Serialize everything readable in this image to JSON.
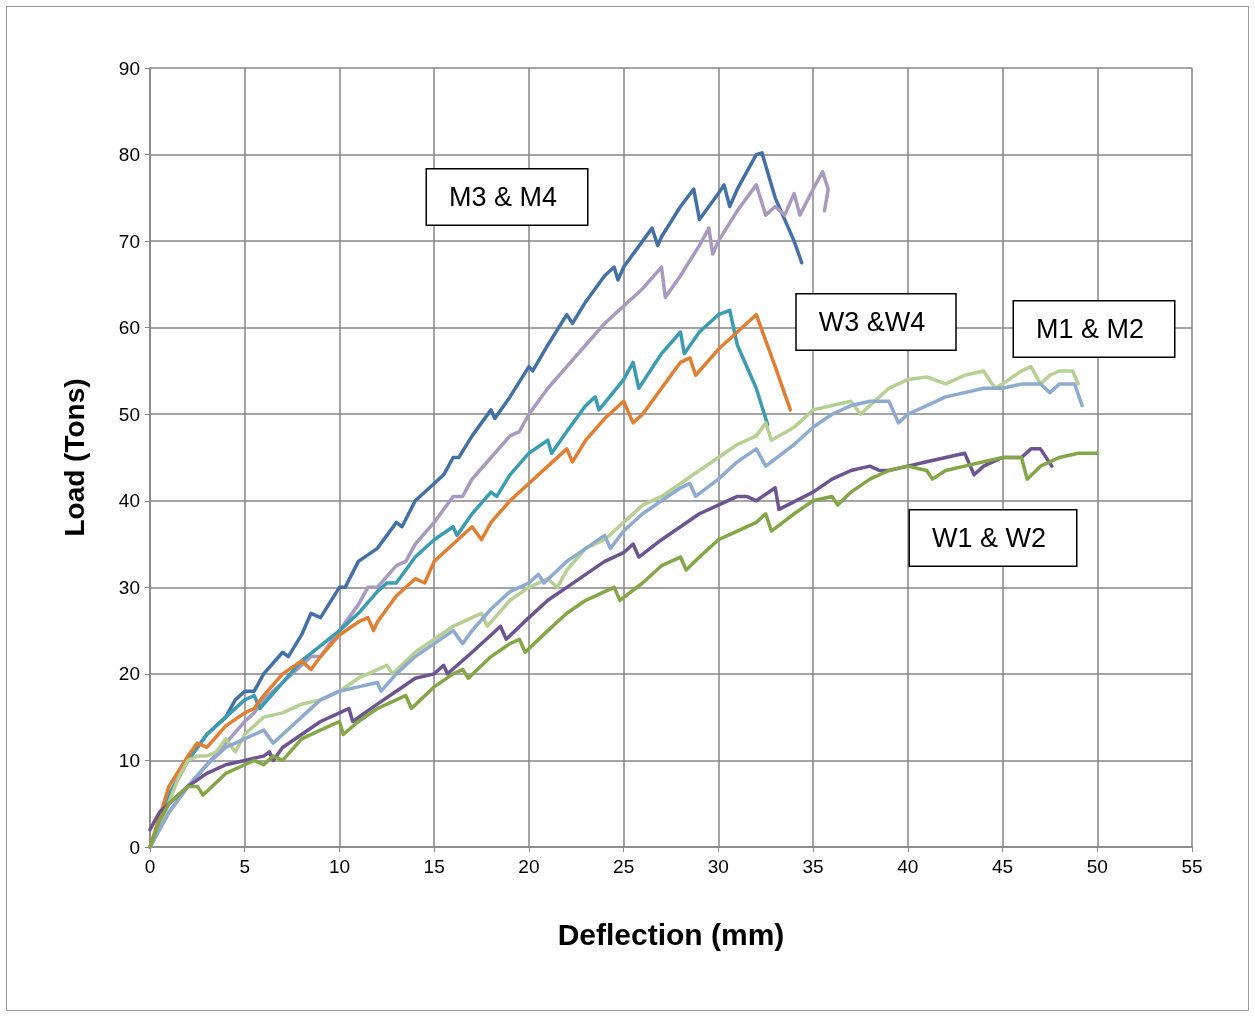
{
  "chart_data": {
    "type": "line",
    "xlabel": "Deflection (mm)",
    "ylabel": "Load (Tons)",
    "xlim": [
      0,
      55
    ],
    "xticks": [
      0,
      5,
      10,
      15,
      20,
      25,
      30,
      35,
      40,
      45,
      50,
      55
    ],
    "ylim": [
      0,
      90
    ],
    "yticks": [
      0,
      10,
      20,
      30,
      40,
      50,
      60,
      70,
      80,
      90
    ],
    "grid": true,
    "marker": "none",
    "line_style": "solid",
    "annotations": [
      "M3 & M4",
      "W3 &W4",
      "M1 & M2",
      "W1 & W2"
    ],
    "series": [
      {
        "color": "#4470a8",
        "x": [
          0,
          1,
          2,
          3,
          3.5,
          4,
          4.5,
          5,
          5.5,
          6,
          7,
          7.3,
          8,
          8.5,
          9,
          10,
          10.3,
          11,
          12,
          13,
          13.3,
          14,
          15,
          15.5,
          16,
          16.3,
          17,
          18,
          18.2,
          19,
          20,
          20.2,
          21,
          22,
          22.3,
          23,
          24,
          24.5,
          24.7,
          25,
          26,
          26.5,
          26.8,
          27,
          28,
          28.7,
          29,
          30,
          30.3,
          30.6,
          31,
          32,
          32.3,
          33,
          34,
          34.4
        ],
        "values": [
          0,
          6,
          10,
          13,
          14,
          15,
          17,
          18,
          18,
          20,
          22.5,
          22,
          24.5,
          27,
          26.5,
          30,
          30,
          33,
          34.5,
          37.5,
          37,
          40,
          42,
          43,
          45,
          45,
          47.5,
          50.5,
          49.5,
          52,
          55.5,
          55,
          58,
          61.5,
          60.5,
          63,
          66,
          67,
          65.5,
          67,
          70,
          71.5,
          69.5,
          70.5,
          74,
          76,
          72.5,
          75.5,
          76.5,
          74,
          76,
          80,
          80.2,
          75,
          70,
          67.5
        ]
      },
      {
        "color": "#a799c0",
        "x": [
          0,
          1,
          2,
          3,
          4,
          5,
          5.5,
          6,
          7,
          8,
          8.5,
          9,
          10,
          11,
          11.5,
          12,
          13,
          13.5,
          14,
          15,
          16,
          16.5,
          17,
          18,
          19,
          19.5,
          20,
          20.5,
          21,
          22,
          23,
          24,
          25,
          26,
          27,
          27.2,
          28,
          29,
          29.5,
          29.7,
          30,
          31,
          32,
          32.5,
          33,
          33.5,
          34,
          34.3,
          35,
          35.5,
          35.8,
          35.6
        ],
        "values": [
          0,
          4,
          7,
          9.5,
          12,
          14.5,
          15.5,
          17,
          19,
          21,
          22,
          22,
          25,
          28,
          30,
          30,
          32.5,
          33,
          35,
          37.5,
          40.5,
          40.5,
          42.5,
          45,
          47.5,
          48,
          50,
          51.5,
          53,
          55.5,
          58,
          60.5,
          62.5,
          64.5,
          67,
          63.5,
          66,
          69.5,
          71.5,
          68.5,
          70,
          73.5,
          76.5,
          73,
          74,
          73,
          75.5,
          73,
          76,
          78,
          76,
          73.5
        ]
      },
      {
        "color": "#3b9cb1",
        "x": [
          0,
          1,
          2,
          3,
          4,
          5,
          5.5,
          5.8,
          7,
          8,
          10,
          11,
          12,
          12.5,
          13,
          14,
          15,
          16,
          16.2,
          17,
          18,
          18.3,
          19,
          20,
          21,
          21.2,
          22,
          23,
          23.5,
          23.7,
          25,
          25.5,
          25.8,
          27,
          28,
          28.2,
          29,
          30,
          30.6,
          31,
          32,
          32.6
        ],
        "values": [
          0,
          6,
          10,
          13,
          15,
          17,
          17.5,
          16,
          19,
          21.5,
          25,
          27,
          29.5,
          30.5,
          30.5,
          33.5,
          35.5,
          37,
          36,
          38.5,
          41,
          40.5,
          43,
          45.5,
          47,
          45.5,
          48,
          51,
          52,
          50.5,
          54,
          56,
          53,
          57,
          59.5,
          57,
          59.5,
          61.5,
          62,
          58,
          53,
          48.8
        ]
      },
      {
        "color": "#e07f33",
        "x": [
          0,
          1,
          2,
          2.5,
          3,
          4,
          5,
          5.5,
          6,
          7,
          8,
          8.5,
          9,
          10,
          11,
          11.5,
          11.8,
          12,
          13,
          14,
          14.5,
          15,
          16,
          17,
          17.5,
          18,
          19,
          20,
          21,
          22,
          22.3,
          23,
          24,
          25,
          25.5,
          26,
          27,
          28,
          28.5,
          28.8,
          30,
          31,
          32,
          33,
          33.8
        ],
        "values": [
          0,
          7,
          10.5,
          12,
          11.5,
          14,
          15.5,
          16,
          17.5,
          20,
          21.5,
          20.5,
          22,
          24.5,
          26,
          26.5,
          25,
          26,
          29,
          31,
          30.5,
          33,
          35,
          37,
          35.5,
          37.5,
          40,
          42,
          44,
          46,
          44.5,
          47,
          49.5,
          51.5,
          49,
          50,
          53,
          56,
          56.5,
          54.5,
          57.5,
          59.5,
          61.5,
          55.5,
          50.5
        ]
      },
      {
        "color": "#b6cf92",
        "x": [
          0,
          0.8,
          1.5,
          2,
          2.5,
          3,
          3.5,
          4,
          4.5,
          5,
          6,
          7,
          8,
          9,
          10,
          11,
          12,
          12.5,
          12.8,
          14,
          15,
          16,
          17,
          17.5,
          17.8,
          19,
          20,
          21,
          21.5,
          22,
          23,
          24,
          25,
          26,
          27,
          28,
          29,
          30,
          31,
          32,
          32.5,
          32.8,
          34,
          35,
          36,
          37,
          37.5,
          38,
          39,
          40,
          41,
          42,
          43,
          44,
          44.6,
          45,
          46,
          46.5,
          47,
          47.5,
          48,
          48.7,
          49
        ],
        "values": [
          0,
          4,
          8,
          10,
          10.5,
          10.5,
          11,
          12.5,
          11,
          13,
          15,
          15.5,
          16.5,
          17,
          18,
          19.5,
          20.5,
          21,
          20,
          22.5,
          24,
          25.5,
          26.5,
          27,
          25.5,
          28.5,
          30,
          31,
          30,
          32,
          34.5,
          35.5,
          37.5,
          39.5,
          40.5,
          42,
          43.5,
          45,
          46.5,
          47.5,
          49,
          47,
          48.5,
          50.5,
          51,
          51.5,
          50,
          51,
          53,
          54,
          54.3,
          53.5,
          54.5,
          55,
          53,
          53.5,
          55,
          55.5,
          53.5,
          54.5,
          55,
          55,
          53.5
        ]
      },
      {
        "color": "#8faacf",
        "x": [
          0,
          1,
          2,
          3,
          4,
          5,
          6,
          6.5,
          7,
          8,
          9,
          10,
          11,
          12,
          12.2,
          13,
          14,
          15,
          16,
          16.5,
          17,
          18,
          19,
          20,
          20.5,
          20.8,
          22,
          23,
          24,
          24.3,
          25,
          26,
          27,
          28,
          28.5,
          28.8,
          30,
          31,
          32,
          32.5,
          34,
          35,
          36,
          37,
          38,
          39,
          39.5,
          40,
          41,
          42,
          43,
          44,
          45,
          46,
          47,
          47.5,
          48,
          48.8,
          49.2
        ],
        "values": [
          0,
          4,
          7,
          9.5,
          11.5,
          12.5,
          13.5,
          12,
          13,
          15,
          17,
          18,
          18.5,
          19,
          18,
          20,
          22,
          23.5,
          25,
          23.5,
          25,
          27.5,
          29.5,
          30.5,
          31.5,
          30.5,
          33,
          34.5,
          36,
          34.5,
          36.5,
          38.5,
          40,
          41.5,
          42,
          40.5,
          42.5,
          44.5,
          46,
          44,
          46.5,
          48.5,
          50,
          51,
          51.5,
          51.5,
          49,
          50,
          51,
          52,
          52.5,
          53,
          53,
          53.5,
          53.5,
          52.5,
          53.5,
          53.5,
          51
        ]
      },
      {
        "color": "#6c5491",
        "x": [
          0,
          0.5,
          1,
          2,
          3,
          4,
          5,
          6,
          6.3,
          6.5,
          7,
          8,
          9,
          10,
          10.5,
          10.7,
          12,
          13,
          14,
          15,
          15.5,
          15.7,
          17,
          18,
          18.5,
          18.8,
          20,
          21,
          22,
          23,
          24,
          25,
          25.5,
          25.8,
          27,
          28,
          29,
          30,
          31,
          31.5,
          32,
          33,
          33.2,
          35,
          36,
          37,
          38,
          38.5,
          39,
          40,
          41,
          42,
          43,
          43.5,
          44,
          45,
          46,
          46.5,
          47,
          47.6
        ],
        "values": [
          2,
          4,
          5,
          7,
          8.5,
          9.5,
          10,
          10.5,
          11,
          10,
          11.5,
          13,
          14.5,
          15.5,
          16,
          14.5,
          16.5,
          18,
          19.5,
          20,
          21,
          20,
          22.5,
          24.5,
          25.5,
          24,
          26.5,
          28.5,
          30,
          31.5,
          33,
          34,
          35,
          33.5,
          35.5,
          37,
          38.5,
          39.5,
          40.5,
          40.5,
          40,
          41.5,
          39,
          41,
          42.5,
          43.5,
          44,
          43.5,
          43.5,
          44,
          44.5,
          45,
          45.5,
          43,
          44,
          45,
          45,
          46,
          46,
          44
        ]
      },
      {
        "color": "#83a747",
        "x": [
          0,
          0.5,
          1,
          2,
          2.5,
          2.8,
          4,
          5,
          5.5,
          6,
          6.5,
          7,
          8,
          9,
          10,
          10.2,
          11,
          12,
          13,
          13.5,
          13.8,
          15,
          16,
          16.5,
          16.8,
          18,
          19,
          19.5,
          19.8,
          21,
          22,
          23,
          24,
          24.5,
          24.8,
          26,
          27,
          28,
          28.3,
          29,
          30,
          31,
          32,
          32.5,
          32.8,
          34,
          35,
          36,
          36.3,
          37,
          38,
          39,
          40,
          41,
          41.3,
          42,
          43,
          44,
          45,
          46,
          46.3,
          47,
          48,
          49,
          50
        ],
        "values": [
          0,
          3,
          5,
          7,
          7,
          6,
          8.5,
          9.5,
          10,
          9.5,
          10.5,
          10,
          12.5,
          13.5,
          14.5,
          13,
          14.5,
          16,
          17,
          17.5,
          16,
          18.5,
          20,
          20.5,
          19.5,
          22,
          23.5,
          24,
          22.5,
          25,
          27,
          28.5,
          29.5,
          30,
          28.5,
          30.5,
          32.5,
          33.5,
          32,
          33.5,
          35.5,
          36.5,
          37.5,
          38.5,
          36.5,
          38.5,
          40,
          40.5,
          39.5,
          41,
          42.5,
          43.5,
          44,
          43.5,
          42.5,
          43.5,
          44,
          44.5,
          45,
          45,
          42.5,
          44,
          45,
          45.5,
          45.5
        ]
      }
    ]
  }
}
